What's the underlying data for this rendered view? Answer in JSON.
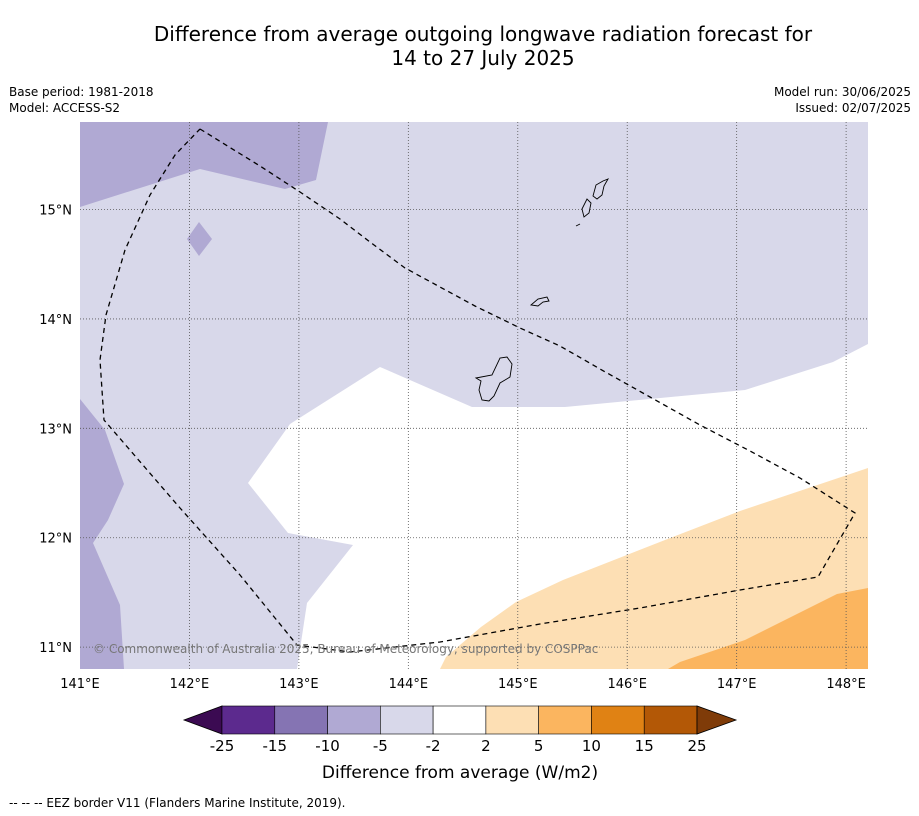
{
  "title": {
    "line1": "Difference from average outgoing longwave radiation forecast for",
    "line2": "14 to 27 July 2025"
  },
  "meta": {
    "base_period": "Base period: 1981-2018",
    "model": "Model: ACCESS-S2",
    "model_run": "Model run: 30/06/2025",
    "issued": "Issued: 02/07/2025"
  },
  "map": {
    "lon_range": [
      141.0,
      148.2
    ],
    "lat_range": [
      10.8,
      15.8
    ],
    "lon_ticks": [
      "141°E",
      "142°E",
      "143°E",
      "144°E",
      "145°E",
      "146°E",
      "147°E",
      "148°E"
    ],
    "lat_ticks": [
      "15°N",
      "14°N",
      "13°N",
      "12°N",
      "11°N"
    ],
    "copyright": "© Commonwealth of Australia 2025, Bureau of Meteorology, supported by COSPPac",
    "eez_line_style": "dashed"
  },
  "colorbar": {
    "ticks": [
      "-25",
      "-15",
      "-10",
      "-5",
      "-2",
      "2",
      "5",
      "10",
      "15",
      "25"
    ],
    "colors": [
      "#3b0a52",
      "#5c2a8e",
      "#8574b3",
      "#b0a9d3",
      "#d8d8ea",
      "#ffffff",
      "#fddfb4",
      "#fbb55f",
      "#e08214",
      "#b35806",
      "#7f3b08"
    ],
    "label": "Difference from average (W/m2)"
  },
  "footer": "--  --  -- EEZ border V11 (Flanders Marine Institute, 2019)."
}
